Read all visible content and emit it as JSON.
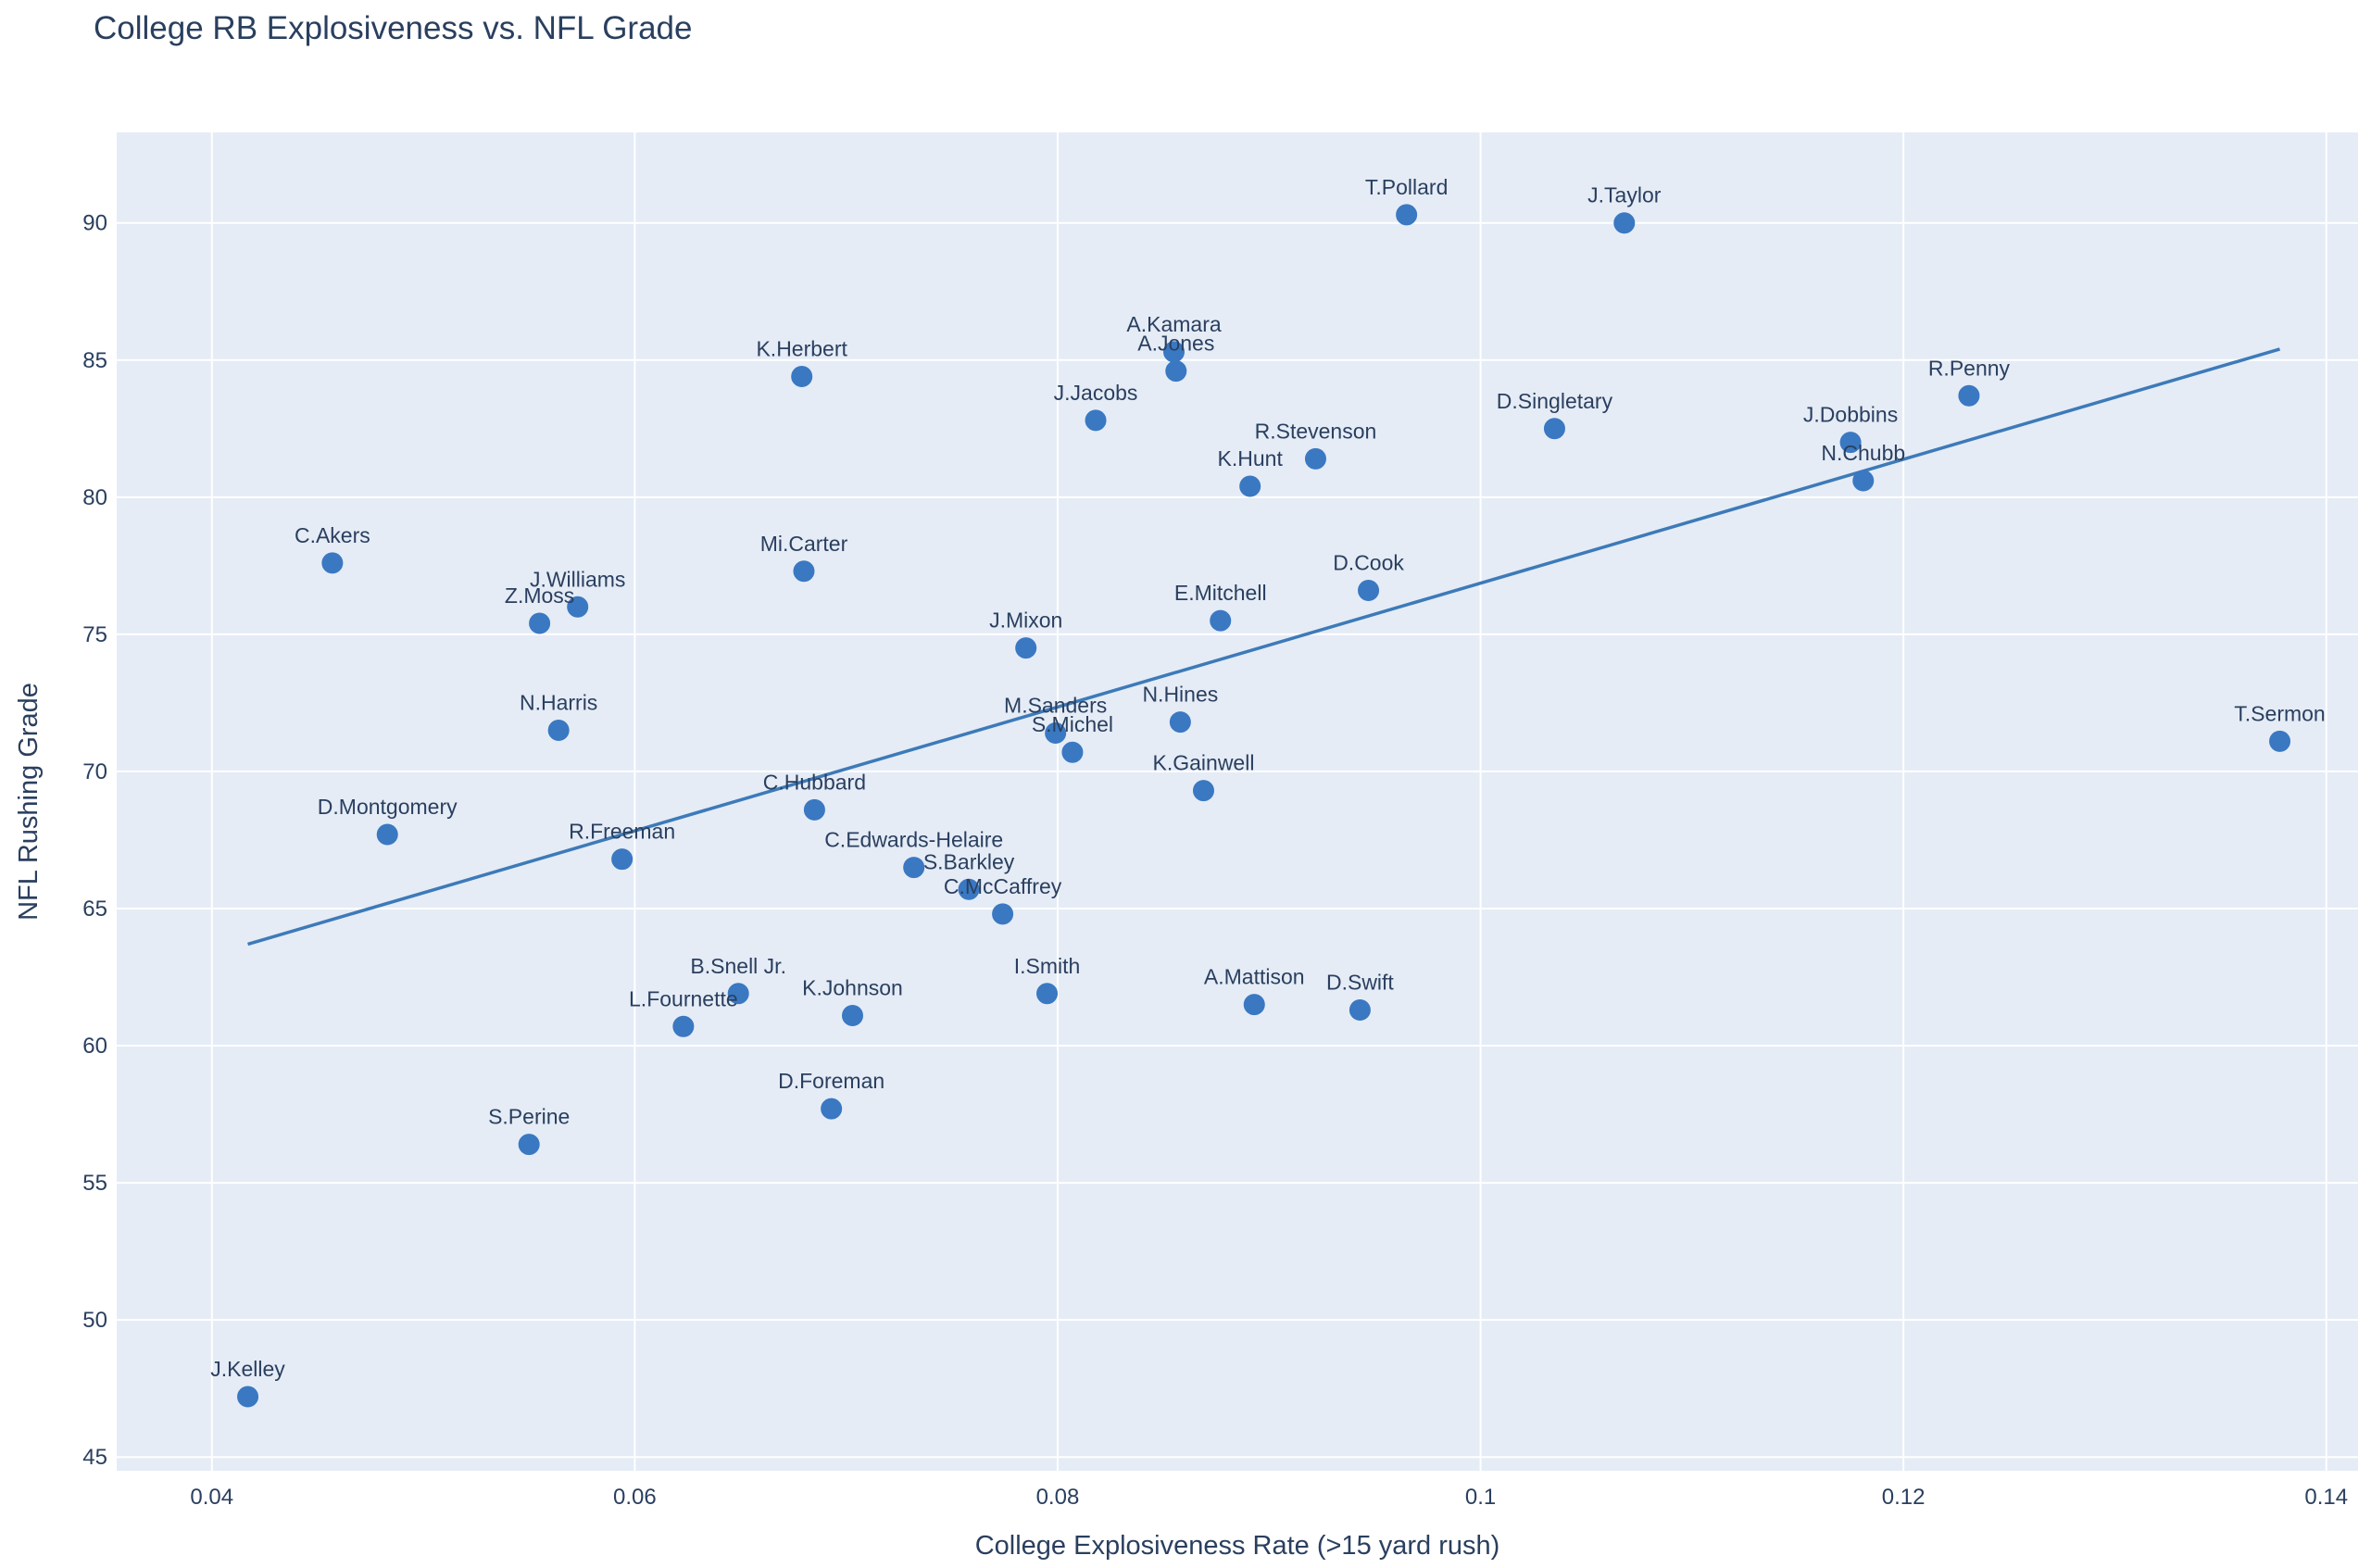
{
  "chart_data": {
    "type": "scatter",
    "title": "College RB Explosiveness vs. NFL Grade",
    "xlabel": "College Explosiveness Rate (>15 yard rush)",
    "ylabel": "NFL Rushing Grade",
    "xlim": [
      0.0355,
      0.1415
    ],
    "ylim": [
      44.5,
      93.3
    ],
    "xticks": [
      0.04,
      0.06,
      0.08,
      0.1,
      0.12,
      0.14
    ],
    "xtick_labels": [
      "0.04",
      "0.06",
      "0.08",
      "0.1",
      "0.12",
      "0.14"
    ],
    "yticks": [
      45,
      50,
      55,
      60,
      65,
      70,
      75,
      80,
      85,
      90
    ],
    "grid": true,
    "legend": "none",
    "colors": {
      "marker": "#3a78c2",
      "trendline": "#3d7ab8",
      "plot_bg": "#e5ecf6",
      "grid": "#ffffff",
      "text": "#2a3f5f"
    },
    "trendline": {
      "x": [
        0.0417,
        0.1378
      ],
      "y": [
        63.7,
        85.4
      ]
    },
    "points": [
      {
        "name": "J.Kelley",
        "x": 0.0417,
        "y": 47.2
      },
      {
        "name": "C.Akers",
        "x": 0.0457,
        "y": 77.6
      },
      {
        "name": "D.Montgomery",
        "x": 0.0483,
        "y": 67.7
      },
      {
        "name": "S.Perine",
        "x": 0.055,
        "y": 56.4
      },
      {
        "name": "Z.Moss",
        "x": 0.0555,
        "y": 75.4
      },
      {
        "name": "N.Harris",
        "x": 0.0564,
        "y": 71.5
      },
      {
        "name": "J.Williams",
        "x": 0.0573,
        "y": 76.0
      },
      {
        "name": "R.Freeman",
        "x": 0.0594,
        "y": 66.8
      },
      {
        "name": "L.Fournette",
        "x": 0.0623,
        "y": 60.7
      },
      {
        "name": "B.Snell Jr.",
        "x": 0.0649,
        "y": 61.9
      },
      {
        "name": "K.Herbert",
        "x": 0.0679,
        "y": 84.4
      },
      {
        "name": "Mi.Carter",
        "x": 0.068,
        "y": 77.3
      },
      {
        "name": "C.Hubbard",
        "x": 0.0685,
        "y": 68.6
      },
      {
        "name": "D.Foreman",
        "x": 0.0693,
        "y": 57.7
      },
      {
        "name": "K.Johnson",
        "x": 0.0703,
        "y": 61.1
      },
      {
        "name": "C.Edwards-Helaire",
        "x": 0.0732,
        "y": 66.5
      },
      {
        "name": "S.Barkley",
        "x": 0.0758,
        "y": 65.7
      },
      {
        "name": "C.McCaffrey",
        "x": 0.0774,
        "y": 64.8
      },
      {
        "name": "J.Mixon",
        "x": 0.0785,
        "y": 74.5
      },
      {
        "name": "I.Smith",
        "x": 0.0795,
        "y": 61.9
      },
      {
        "name": "M.Sanders",
        "x": 0.0799,
        "y": 71.4
      },
      {
        "name": "S.Michel",
        "x": 0.0807,
        "y": 70.7
      },
      {
        "name": "J.Jacobs",
        "x": 0.0818,
        "y": 82.8
      },
      {
        "name": "A.Kamara",
        "x": 0.0855,
        "y": 85.3
      },
      {
        "name": "A.Jones",
        "x": 0.0856,
        "y": 84.6
      },
      {
        "name": "N.Hines",
        "x": 0.0858,
        "y": 71.8
      },
      {
        "name": "K.Gainwell",
        "x": 0.0869,
        "y": 69.3
      },
      {
        "name": "E.Mitchell",
        "x": 0.0877,
        "y": 75.5
      },
      {
        "name": "K.Hunt",
        "x": 0.0891,
        "y": 80.4
      },
      {
        "name": "A.Mattison",
        "x": 0.0893,
        "y": 61.5
      },
      {
        "name": "R.Stevenson",
        "x": 0.0922,
        "y": 81.4
      },
      {
        "name": "D.Swift",
        "x": 0.0943,
        "y": 61.3
      },
      {
        "name": "D.Cook",
        "x": 0.0947,
        "y": 76.6
      },
      {
        "name": "T.Pollard",
        "x": 0.0965,
        "y": 90.3
      },
      {
        "name": "D.Singletary",
        "x": 0.1035,
        "y": 82.5
      },
      {
        "name": "J.Taylor",
        "x": 0.1068,
        "y": 90.0
      },
      {
        "name": "J.Dobbins",
        "x": 0.1175,
        "y": 82.0
      },
      {
        "name": "N.Chubb",
        "x": 0.1181,
        "y": 80.6
      },
      {
        "name": "R.Penny",
        "x": 0.1231,
        "y": 83.7
      },
      {
        "name": "T.Sermon",
        "x": 0.1378,
        "y": 71.1
      }
    ]
  }
}
